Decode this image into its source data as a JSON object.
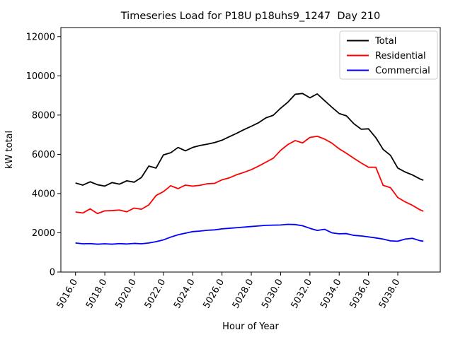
{
  "chart_data": {
    "type": "line",
    "title": "Timeseries Load for P18U p18uhs9_1247  Day 210",
    "xlabel": "Hour of Year",
    "ylabel": "kW total",
    "grid": false,
    "legend_position": "upper right",
    "xlim": [
      5015.0,
      5040.9
    ],
    "ylim": [
      0,
      12460
    ],
    "xtick_values": [
      5016,
      5018,
      5020,
      5022,
      5024,
      5026,
      5028,
      5030,
      5032,
      5034,
      5036,
      5038
    ],
    "xtick_labels": [
      "5016.0",
      "5018.0",
      "5020.0",
      "5022.0",
      "5024.0",
      "5026.0",
      "5028.0",
      "5030.0",
      "5032.0",
      "5034.0",
      "5036.0",
      "5038.0"
    ],
    "ytick_values": [
      0,
      2000,
      4000,
      6000,
      8000,
      10000,
      12000
    ],
    "ytick_labels": [
      "0",
      "2000",
      "4000",
      "6000",
      "8000",
      "10000",
      "12000"
    ],
    "x": [
      5016.0,
      5016.5,
      5017.0,
      5017.5,
      5018.0,
      5018.5,
      5019.0,
      5019.5,
      5020.0,
      5020.5,
      5021.0,
      5021.5,
      5022.0,
      5022.5,
      5023.0,
      5023.5,
      5024.0,
      5024.5,
      5025.0,
      5025.5,
      5026.0,
      5026.5,
      5027.0,
      5027.5,
      5028.0,
      5028.5,
      5029.0,
      5029.5,
      5030.0,
      5030.5,
      5031.0,
      5031.5,
      5032.0,
      5032.5,
      5033.0,
      5033.5,
      5034.0,
      5034.5,
      5035.0,
      5035.5,
      5036.0,
      5036.5,
      5037.0,
      5037.5,
      5038.0,
      5038.5,
      5039.0,
      5039.5,
      5039.75
    ],
    "series": [
      {
        "name": "Total",
        "color": "#000000",
        "values": [
          4540,
          4430,
          4600,
          4450,
          4380,
          4560,
          4480,
          4650,
          4580,
          4820,
          5400,
          5300,
          5970,
          6080,
          6350,
          6180,
          6350,
          6450,
          6520,
          6600,
          6720,
          6900,
          7070,
          7260,
          7430,
          7610,
          7860,
          7990,
          8350,
          8660,
          9060,
          9100,
          8880,
          9080,
          8740,
          8400,
          8080,
          7960,
          7560,
          7280,
          7300,
          6850,
          6250,
          5950,
          5300,
          5100,
          4950,
          4750,
          4680
        ]
      },
      {
        "name": "Residential",
        "color": "#ff0000",
        "values": [
          3060,
          3010,
          3220,
          2980,
          3120,
          3130,
          3160,
          3070,
          3260,
          3200,
          3420,
          3900,
          4100,
          4400,
          4250,
          4430,
          4380,
          4420,
          4500,
          4520,
          4700,
          4800,
          4960,
          5080,
          5220,
          5400,
          5600,
          5800,
          6200,
          6500,
          6700,
          6580,
          6860,
          6920,
          6780,
          6570,
          6280,
          6050,
          5800,
          5560,
          5340,
          5340,
          4420,
          4300,
          3800,
          3580,
          3400,
          3180,
          3100
        ]
      },
      {
        "name": "Commercial",
        "color": "#0000ff",
        "values": [
          1480,
          1440,
          1450,
          1420,
          1440,
          1420,
          1450,
          1430,
          1460,
          1440,
          1480,
          1550,
          1640,
          1780,
          1900,
          1980,
          2060,
          2090,
          2130,
          2150,
          2200,
          2230,
          2260,
          2290,
          2320,
          2350,
          2380,
          2390,
          2400,
          2430,
          2420,
          2360,
          2230,
          2120,
          2180,
          2000,
          1950,
          1960,
          1870,
          1840,
          1790,
          1740,
          1680,
          1590,
          1570,
          1680,
          1720,
          1600,
          1570
        ]
      }
    ]
  }
}
